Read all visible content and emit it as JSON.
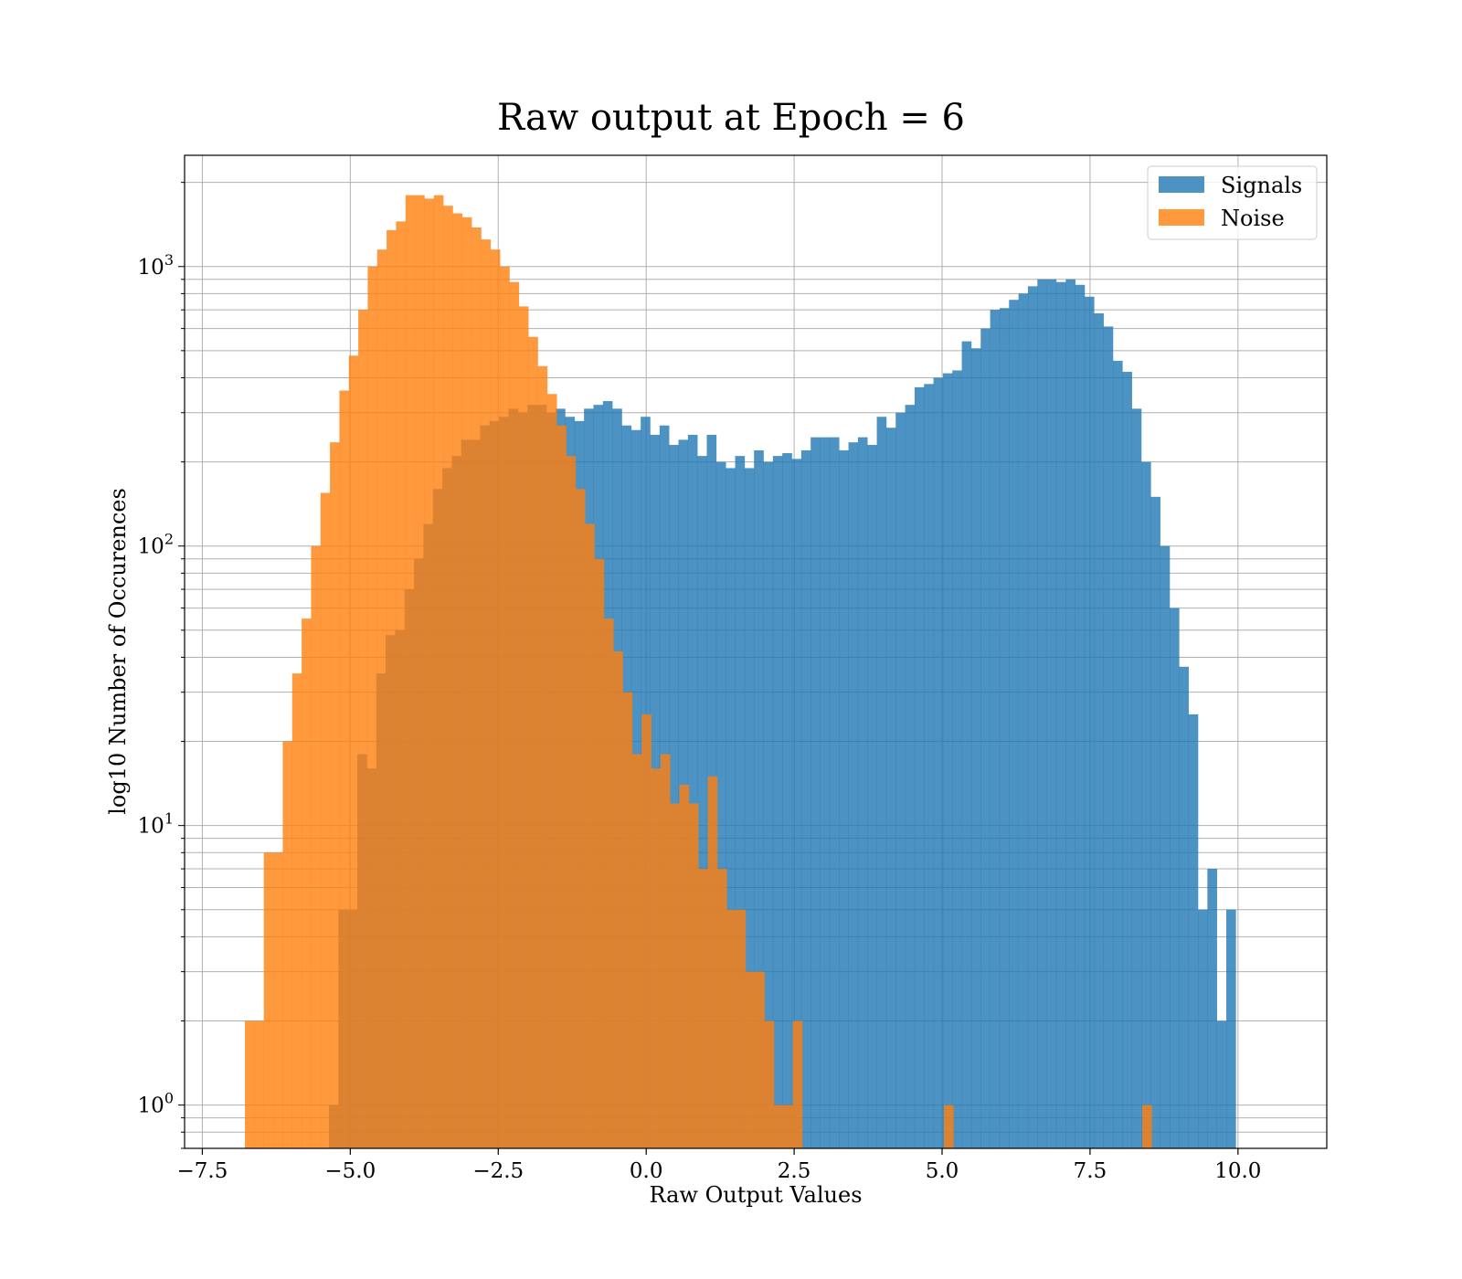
{
  "chart_data": {
    "type": "bar",
    "title": "Raw output at Epoch = 6",
    "xlabel": "Raw Output Values",
    "ylabel": "log10 Number of Occurences",
    "xlim": [
      -7.8,
      11.5
    ],
    "ylim": [
      0.7,
      2500
    ],
    "yscale": "log",
    "grid": true,
    "legend": {
      "placement": "top-right",
      "entries": [
        "Signals",
        "Noise"
      ]
    },
    "x_ticks": [
      "−7.5",
      "−5.0",
      "−2.5",
      "0.0",
      "2.5",
      "5.0",
      "7.5",
      "10.0"
    ],
    "x_tick_values": [
      -7.5,
      -5.0,
      -2.5,
      0.0,
      2.5,
      5.0,
      7.5,
      10.0
    ],
    "y_tick_values": [
      1,
      10,
      100,
      1000
    ],
    "y_ticks": [
      {
        "base": "10",
        "exp": "0"
      },
      {
        "base": "10",
        "exp": "1"
      },
      {
        "base": "10",
        "exp": "2"
      },
      {
        "base": "10",
        "exp": "3"
      }
    ],
    "series": [
      {
        "name": "Signals",
        "color": "#1f77b4",
        "opacity": 0.8,
        "bin_start": -5.36,
        "bin_width": 0.1596,
        "counts": [
          1,
          5,
          5,
          18,
          16,
          35,
          48,
          50,
          70,
          90,
          120,
          160,
          190,
          210,
          240,
          240,
          270,
          280,
          290,
          310,
          300,
          320,
          320,
          300,
          310,
          290,
          280,
          310,
          320,
          330,
          310,
          270,
          260,
          290,
          250,
          270,
          230,
          240,
          250,
          210,
          250,
          200,
          190,
          210,
          190,
          220,
          200,
          210,
          215,
          205,
          220,
          245,
          245,
          245,
          220,
          235,
          245,
          230,
          290,
          265,
          300,
          320,
          370,
          380,
          400,
          415,
          425,
          540,
          510,
          600,
          700,
          710,
          760,
          800,
          850,
          900,
          900,
          880,
          900,
          860,
          780,
          680,
          610,
          460,
          420,
          310,
          200,
          150,
          100,
          60,
          37,
          25,
          5,
          7,
          2,
          5
        ]
      },
      {
        "name": "Noise",
        "color": "#ff7f0e",
        "opacity": 0.8,
        "bin_start": -6.78,
        "bin_width": 0.1596,
        "counts": [
          2,
          2,
          8,
          8,
          20,
          35,
          55,
          100,
          155,
          235,
          360,
          480,
          700,
          1000,
          1150,
          1350,
          1450,
          1800,
          1800,
          1750,
          1800,
          1650,
          1550,
          1500,
          1380,
          1250,
          1150,
          1000,
          880,
          720,
          560,
          440,
          350,
          270,
          210,
          160,
          120,
          90,
          55,
          42,
          30,
          18,
          25,
          16,
          18,
          12,
          14,
          12,
          7,
          15,
          7,
          5,
          5,
          3,
          3,
          2,
          1,
          1,
          2,
          0,
          0,
          0,
          0,
          0,
          0,
          0,
          0,
          0,
          0,
          0,
          0,
          0,
          0,
          0,
          1,
          0,
          0,
          0,
          0,
          0,
          0,
          0,
          0,
          0,
          0,
          0,
          0,
          0,
          0,
          0,
          0,
          0,
          0,
          0,
          0,
          1
        ]
      }
    ]
  }
}
